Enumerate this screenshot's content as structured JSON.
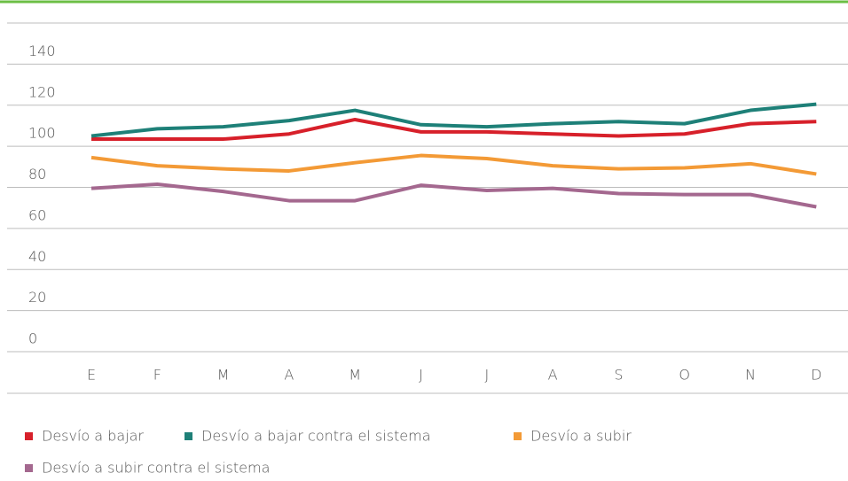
{
  "chart_data": {
    "type": "line",
    "categories": [
      "E",
      "F",
      "M",
      "A",
      "M",
      "J",
      "J",
      "A",
      "S",
      "O",
      "N",
      "D"
    ],
    "ylim": [
      0,
      160
    ],
    "yticks": [
      0,
      20,
      40,
      60,
      80,
      100,
      120,
      140
    ],
    "grid": true,
    "legend": "bottom",
    "series": [
      {
        "name": "Desvío a bajar",
        "color": "#d7202a",
        "values": [
          103.5,
          103.5,
          103.5,
          106,
          113,
          107,
          107,
          106,
          105,
          106,
          111,
          112
        ]
      },
      {
        "name": "Desvío a bajar contra el sistema",
        "color": "#1e8078",
        "values": [
          105,
          108.5,
          109.5,
          112.5,
          117.5,
          110.5,
          109.5,
          111,
          112,
          111,
          117.5,
          120.5
        ]
      },
      {
        "name": "Desvío a subir",
        "color": "#f39a36",
        "values": [
          94.5,
          90.5,
          89,
          88,
          92,
          95.5,
          94,
          90.5,
          89,
          89.5,
          91.5,
          86.5
        ]
      },
      {
        "name": "Desvío a subir contra el sistema",
        "color": "#a4688f",
        "values": [
          79.5,
          81.5,
          78,
          73.5,
          73.5,
          81,
          78.5,
          79.5,
          77,
          76.5,
          76.5,
          70.5
        ]
      }
    ]
  }
}
